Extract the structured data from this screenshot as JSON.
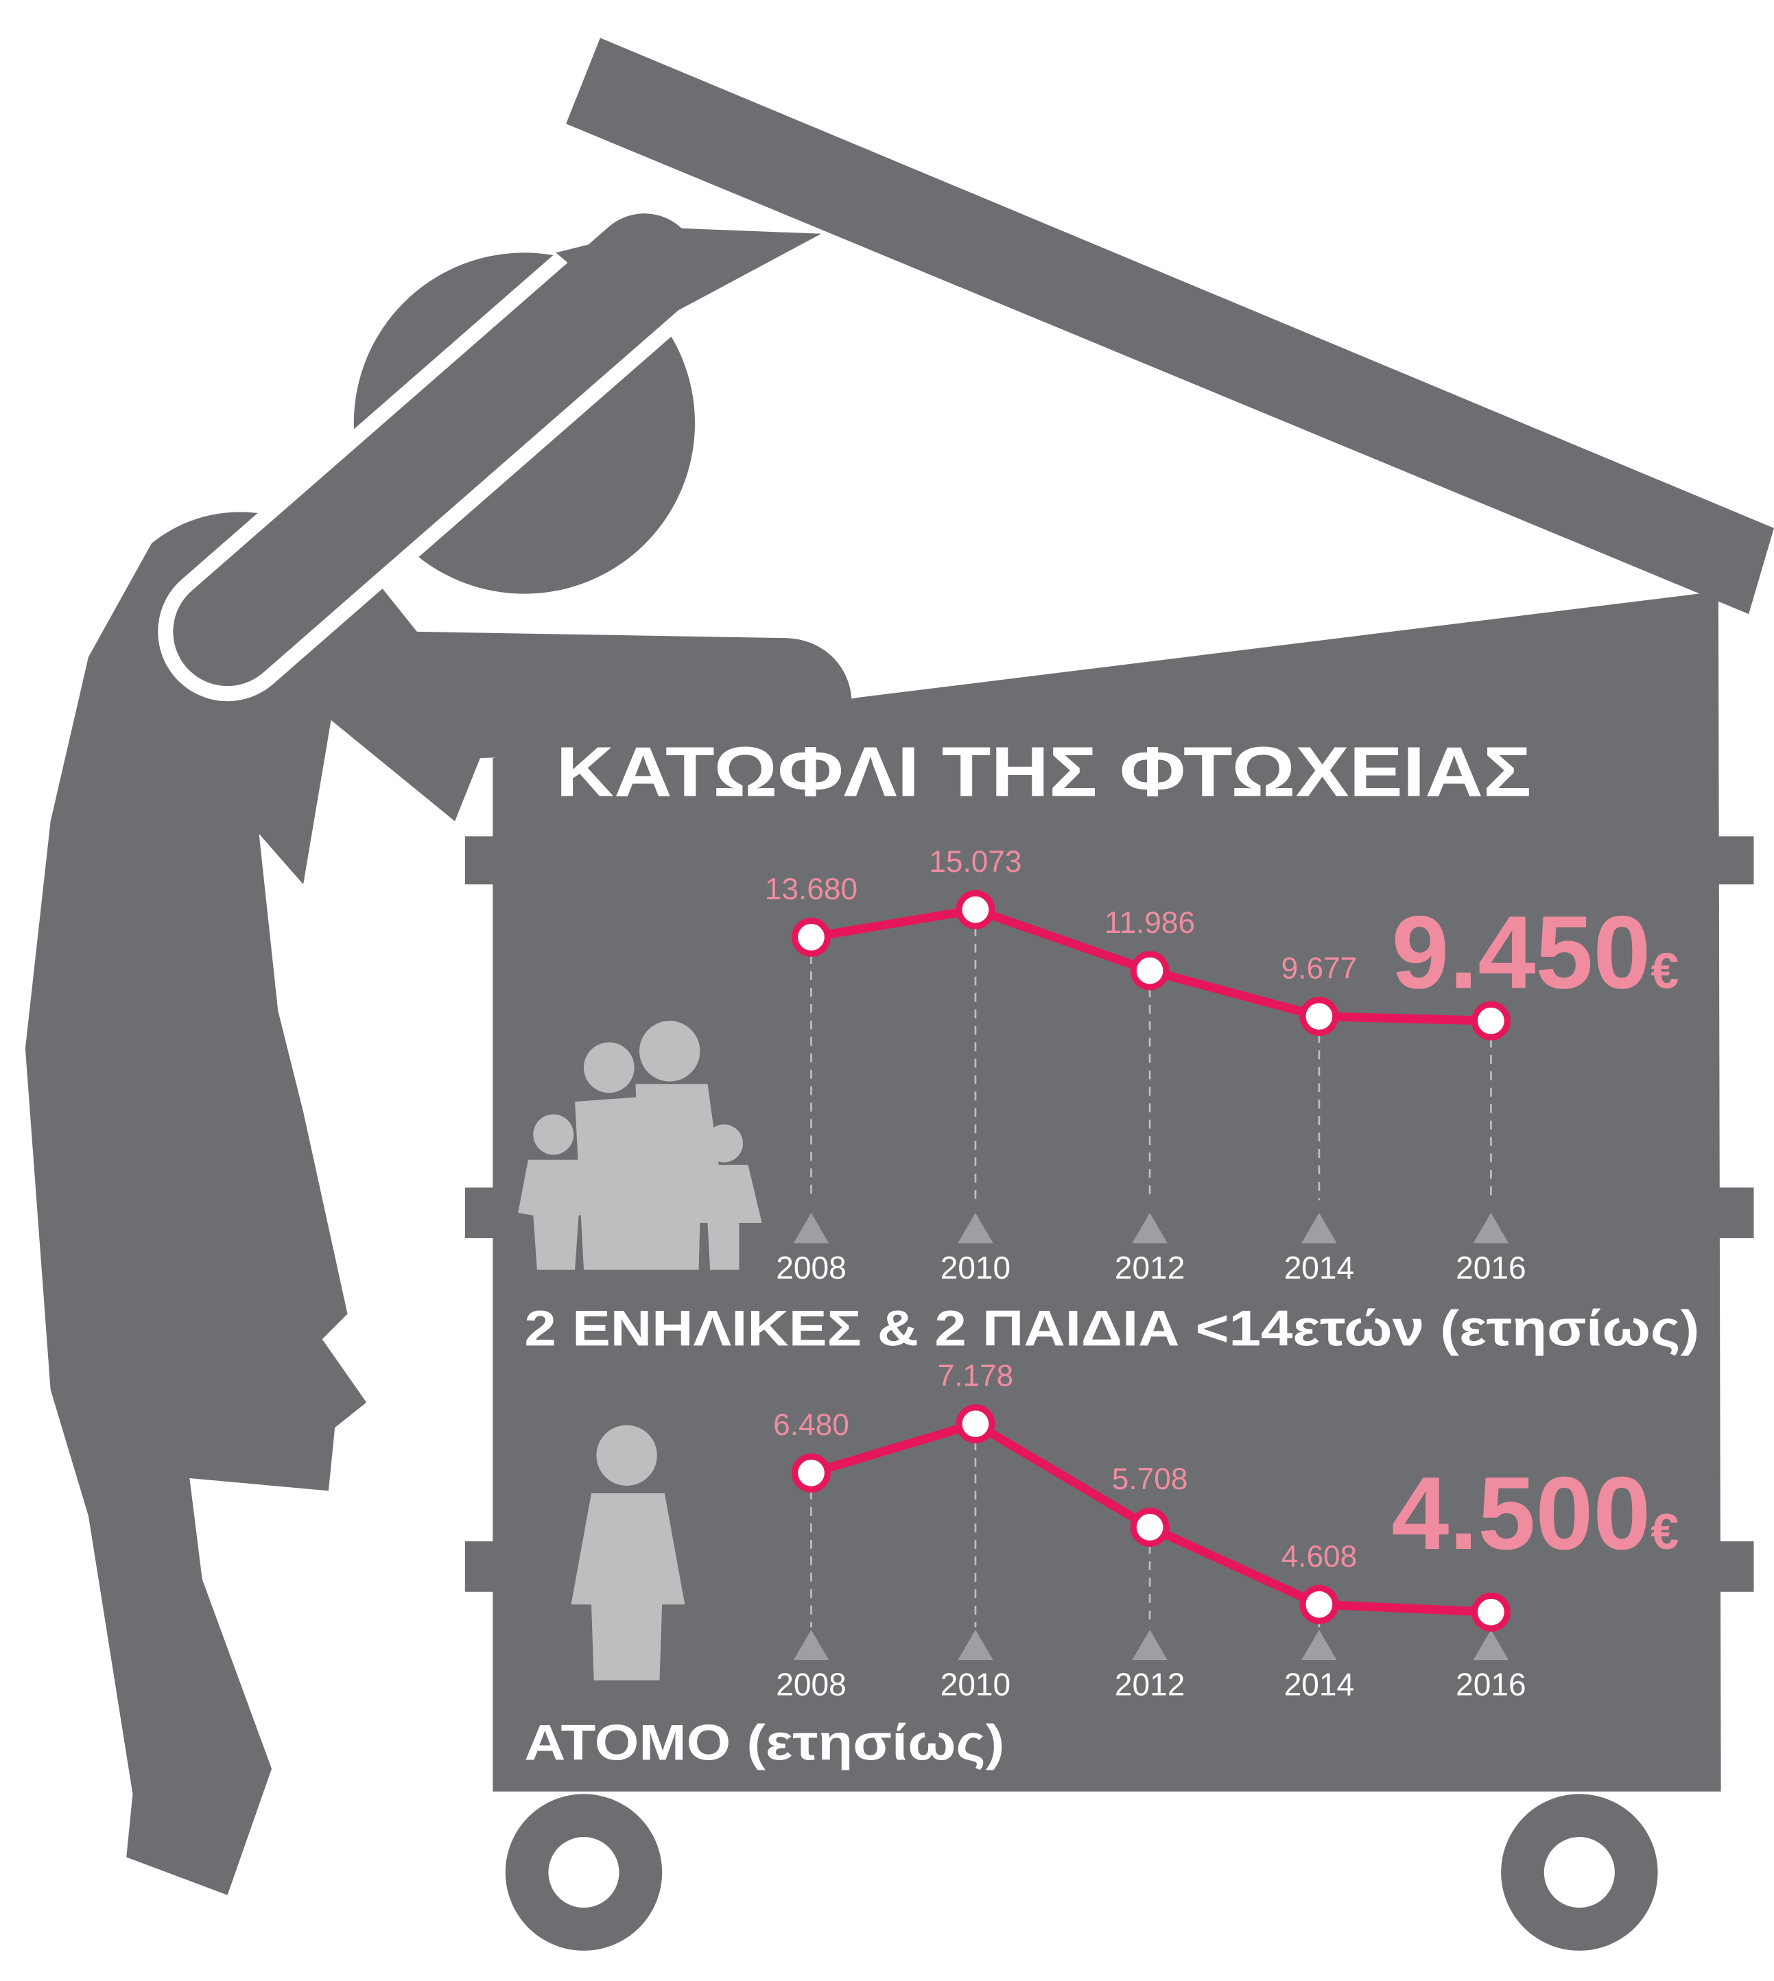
{
  "title": "ΚΑΤΩΦΛΙ ΤΗΣ ΦΤΩΧΕΙΑΣ",
  "chart_data": [
    {
      "type": "line",
      "title": "2 ΕΝΗΛΙΚΕΣ & 2 ΠΑΙΔΙΑ <14ετών (ετησίως)",
      "categories": [
        "2008",
        "2010",
        "2012",
        "2014",
        "2016"
      ],
      "values": [
        13680,
        15073,
        11986,
        9677,
        9450
      ],
      "value_labels": [
        "13.680",
        "15.073",
        "11.986",
        "9.677",
        "9.450"
      ],
      "currency": "€",
      "color": "#e5175a"
    },
    {
      "type": "line",
      "title": "ΑΤΟΜΟ (ετησίως)",
      "categories": [
        "2008",
        "2010",
        "2012",
        "2014",
        "2016"
      ],
      "values": [
        6480,
        7178,
        5708,
        4608,
        4500
      ],
      "value_labels": [
        "6.480",
        "7.178",
        "5.708",
        "4.608",
        "4.500"
      ],
      "currency": "€",
      "color": "#e5175a"
    }
  ]
}
